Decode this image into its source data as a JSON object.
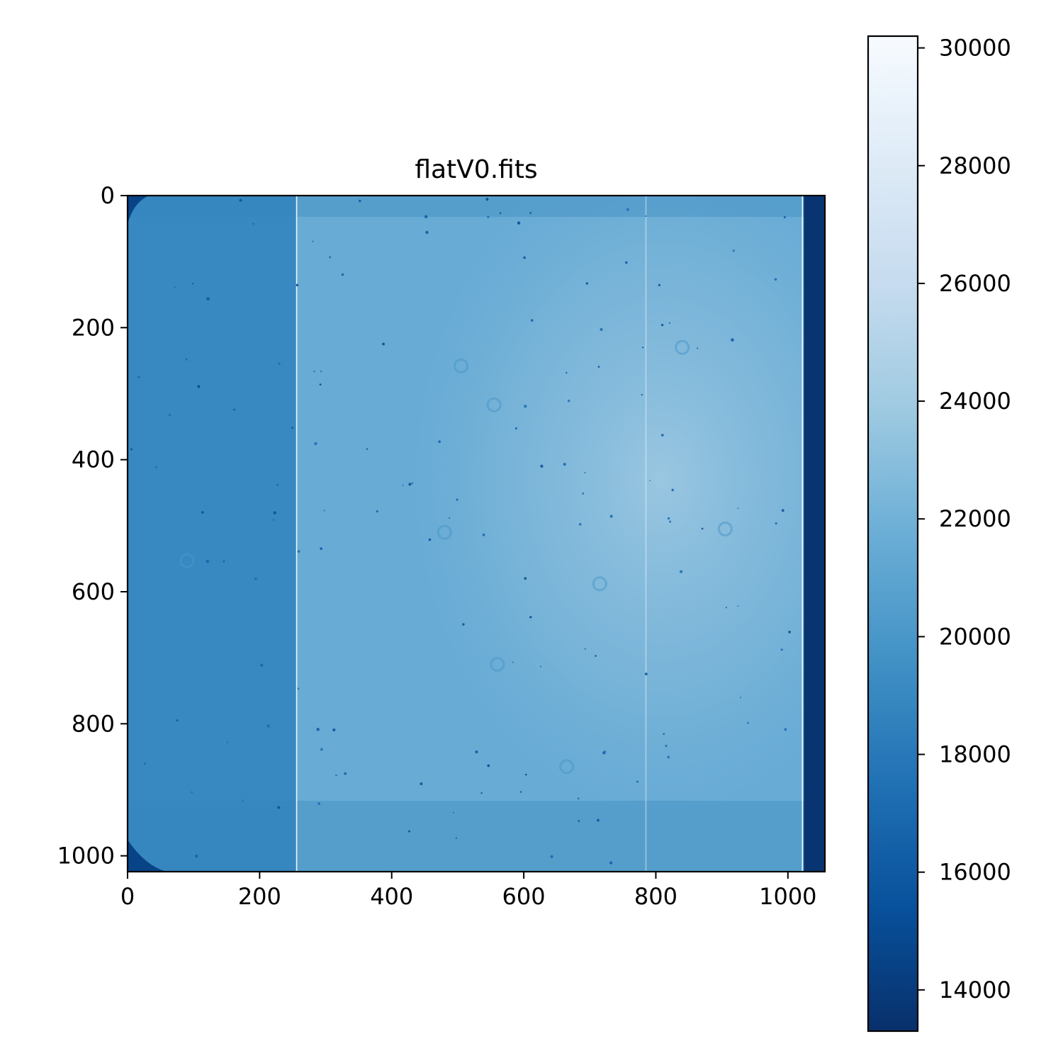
{
  "chart_data": {
    "type": "heatmap",
    "title": "flatV0.fits",
    "xlabel": "",
    "ylabel": "",
    "xlim": [
      0,
      1056
    ],
    "ylim": [
      1024,
      0
    ],
    "x_ticks": [
      0,
      200,
      400,
      600,
      800,
      1000
    ],
    "y_ticks": [
      0,
      200,
      400,
      600,
      800,
      1000
    ],
    "image_shape": [
      1024,
      1056
    ],
    "colormap": "Blues_r",
    "colorbar": {
      "vmin": 13300,
      "vmax": 30200,
      "ticks": [
        14000,
        16000,
        18000,
        20000,
        22000,
        24000,
        26000,
        28000,
        30000
      ]
    },
    "features": {
      "background_left_columns_0_256": 19000,
      "background_center": 21600,
      "background_right_bright_region": 22700,
      "overscan_columns_1024_1056": 13600,
      "bright_column_lines_x": [
        256,
        785,
        1022
      ],
      "dark_corner_value": 14500,
      "dust_rings": [
        {
          "x": 905,
          "y": 505
        },
        {
          "x": 90,
          "y": 553
        },
        {
          "x": 555,
          "y": 317
        },
        {
          "x": 480,
          "y": 510
        },
        {
          "x": 715,
          "y": 588
        },
        {
          "x": 560,
          "y": 710
        },
        {
          "x": 665,
          "y": 865
        },
        {
          "x": 505,
          "y": 258
        },
        {
          "x": 840,
          "y": 230
        }
      ]
    },
    "grid": false,
    "legend": "none"
  }
}
